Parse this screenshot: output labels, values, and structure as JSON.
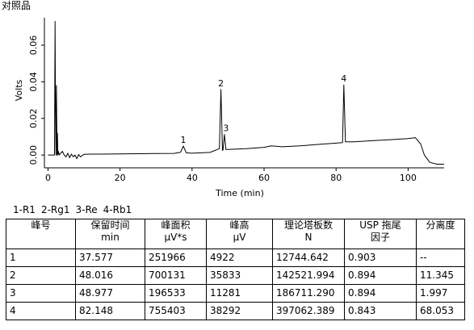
{
  "page_title": "对照品",
  "chart_data": {
    "type": "line",
    "xlabel": "Time (min)",
    "ylabel": "Volts",
    "xlim": [
      -1,
      110
    ],
    "ylim": [
      -0.007,
      0.075
    ],
    "x_ticks": [
      0,
      20,
      40,
      60,
      80,
      100
    ],
    "y_ticks": [
      0.0,
      0.02,
      0.04,
      0.06
    ],
    "y_tick_labels": [
      "0.00",
      "0.02",
      "0.04",
      "0.06"
    ],
    "grid": false,
    "series": [
      {
        "x": [
          0.0,
          1.0,
          1.8,
          1.95,
          2.05,
          2.2,
          2.35,
          2.5,
          2.6,
          2.75,
          2.9,
          3.1,
          3.5,
          4.0,
          4.5,
          5.0,
          5.5,
          6.0,
          6.5,
          7.0,
          7.5,
          8.0,
          8.5,
          9.0,
          10,
          12,
          15,
          20,
          25,
          30,
          35,
          36.8,
          37.577,
          38.4,
          40,
          45,
          47.6,
          48.016,
          48.45,
          48.6,
          48.977,
          49.4,
          50,
          55,
          60,
          62,
          65,
          70,
          75,
          80,
          81.8,
          82.148,
          82.6,
          85,
          90,
          95,
          100,
          102,
          103.5,
          104.5,
          106,
          108,
          110
        ],
        "values": [
          0.0,
          0.0,
          0.0,
          0.073,
          0.035,
          0.0,
          0.038,
          0.0,
          0.012,
          0.0,
          0.002,
          0.0,
          0.001,
          0.002,
          0.0,
          -0.001,
          0.001,
          -0.0015,
          0.0005,
          -0.001,
          0.0,
          -0.002,
          0.0003,
          -0.001,
          0.0004,
          0.0005,
          0.0005,
          0.0006,
          0.0007,
          0.0008,
          0.0009,
          0.0015,
          0.0049,
          0.0012,
          0.001,
          0.0014,
          0.0035,
          0.0358,
          0.0025,
          0.0028,
          0.0113,
          0.003,
          0.003,
          0.0035,
          0.0042,
          0.005,
          0.0045,
          0.005,
          0.0058,
          0.0065,
          0.0068,
          0.0383,
          0.0072,
          0.0072,
          0.0078,
          0.0084,
          0.009,
          0.0095,
          0.006,
          0.0,
          -0.004,
          -0.005,
          -0.005
        ]
      }
    ],
    "peak_labels": [
      {
        "label": "1",
        "x": 37.577,
        "y": 0.0049
      },
      {
        "label": "2",
        "x": 48.016,
        "y": 0.0358
      },
      {
        "label": "3",
        "x": 48.977,
        "y": 0.0113
      },
      {
        "label": "4",
        "x": 82.148,
        "y": 0.0383
      }
    ]
  },
  "legend": [
    "1-R1",
    "2-Rg1",
    "3-Re",
    "4-Rb1"
  ],
  "table": {
    "headers": [
      [
        "峰号",
        ""
      ],
      [
        "保留时间",
        "min"
      ],
      [
        "峰面积",
        "μV*s"
      ],
      [
        "峰高",
        "μV"
      ],
      [
        "理论塔板数",
        "N"
      ],
      [
        "USP 拖尾",
        "因子"
      ],
      [
        "分离度",
        ""
      ]
    ],
    "rows": [
      [
        "1",
        "37.577",
        "251966",
        "4922",
        "12744.642",
        "0.903",
        "--"
      ],
      [
        "2",
        "48.016",
        "700131",
        "35833",
        "142521.994",
        "0.894",
        "11.345"
      ],
      [
        "3",
        "48.977",
        "196533",
        "11281",
        "186711.290",
        "0.894",
        "1.997"
      ],
      [
        "4",
        "82.148",
        "755403",
        "38292",
        "397062.389",
        "0.843",
        "68.053"
      ]
    ]
  }
}
